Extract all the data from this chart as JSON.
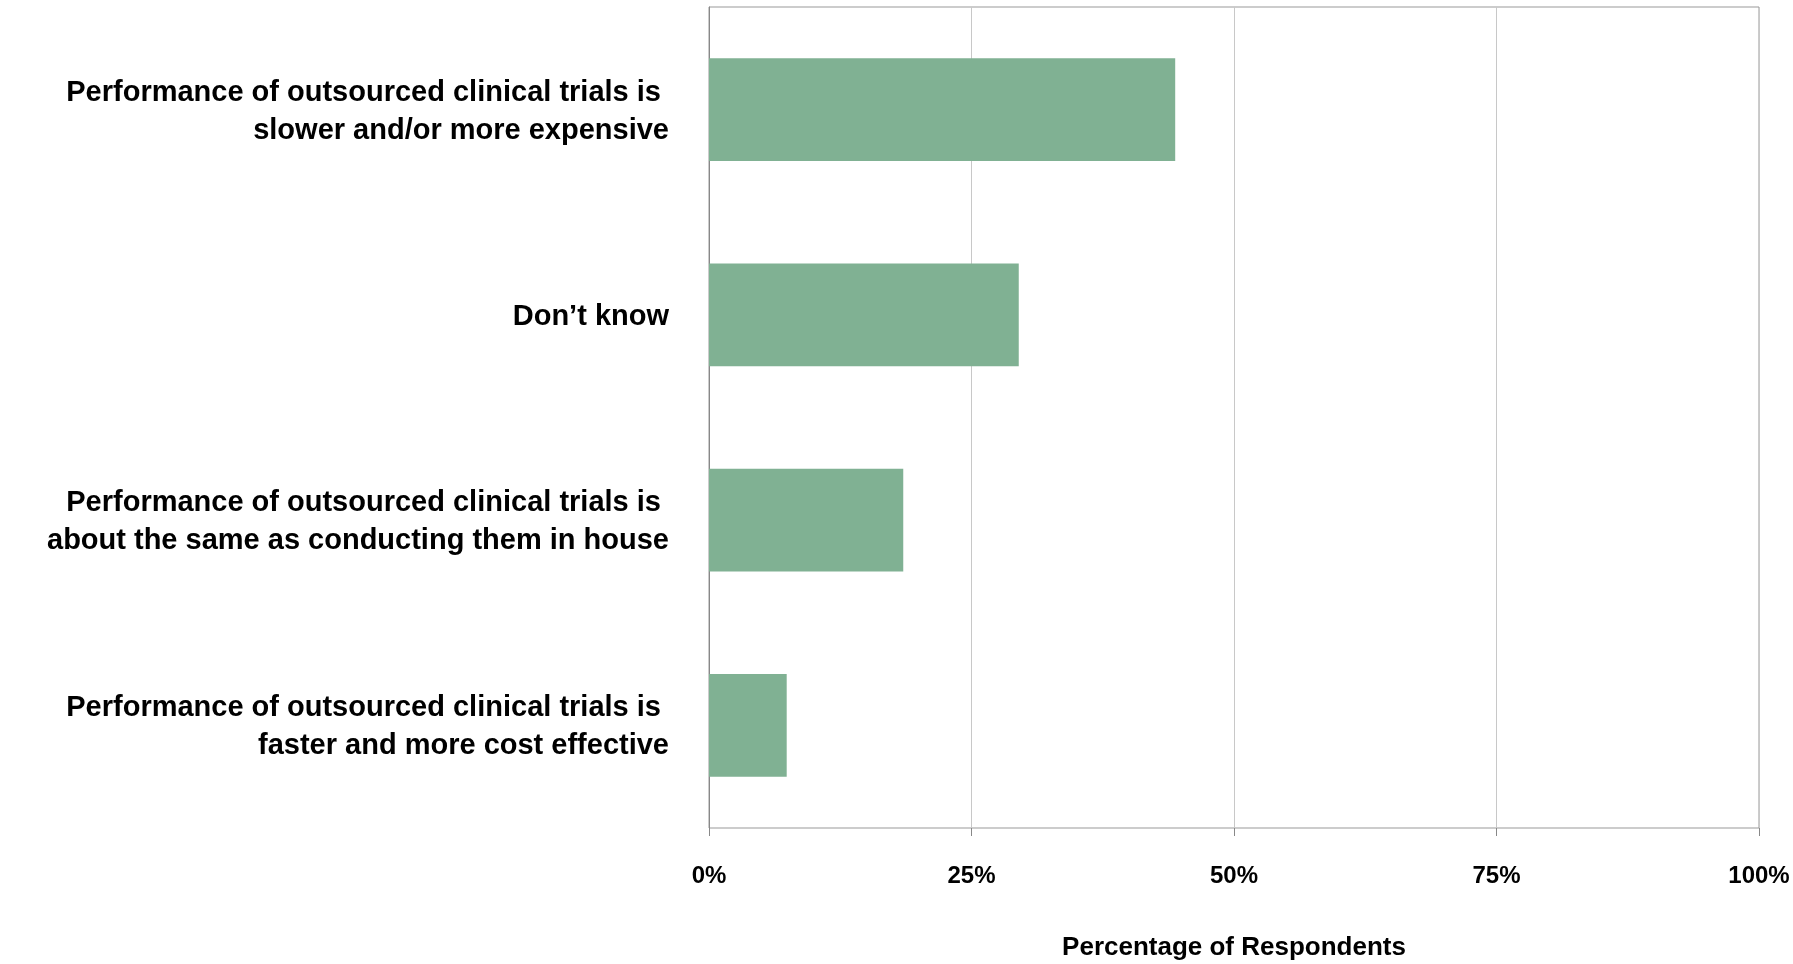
{
  "chart_data": {
    "type": "bar",
    "orientation": "horizontal",
    "xlabel": "Percentage of Respondents",
    "categories": [
      "Performance of outsourced clinical trials is slower and/or more expensive",
      "Don’t know",
      "Performance of outsourced clinical trials is about the same as conducting them in house",
      "Performance of outsourced clinical trials is faster and more cost effective"
    ],
    "values": [
      44.4,
      29.5,
      18.5,
      7.4
    ],
    "color": "#80b193",
    "xlim": [
      0,
      100
    ],
    "xticks": [
      {
        "value": 0,
        "label": "0%"
      },
      {
        "value": 25,
        "label": "25%"
      },
      {
        "value": 50,
        "label": "50%"
      },
      {
        "value": 75,
        "label": "75%"
      },
      {
        "value": 100,
        "label": "100%"
      }
    ],
    "grid": "x"
  }
}
